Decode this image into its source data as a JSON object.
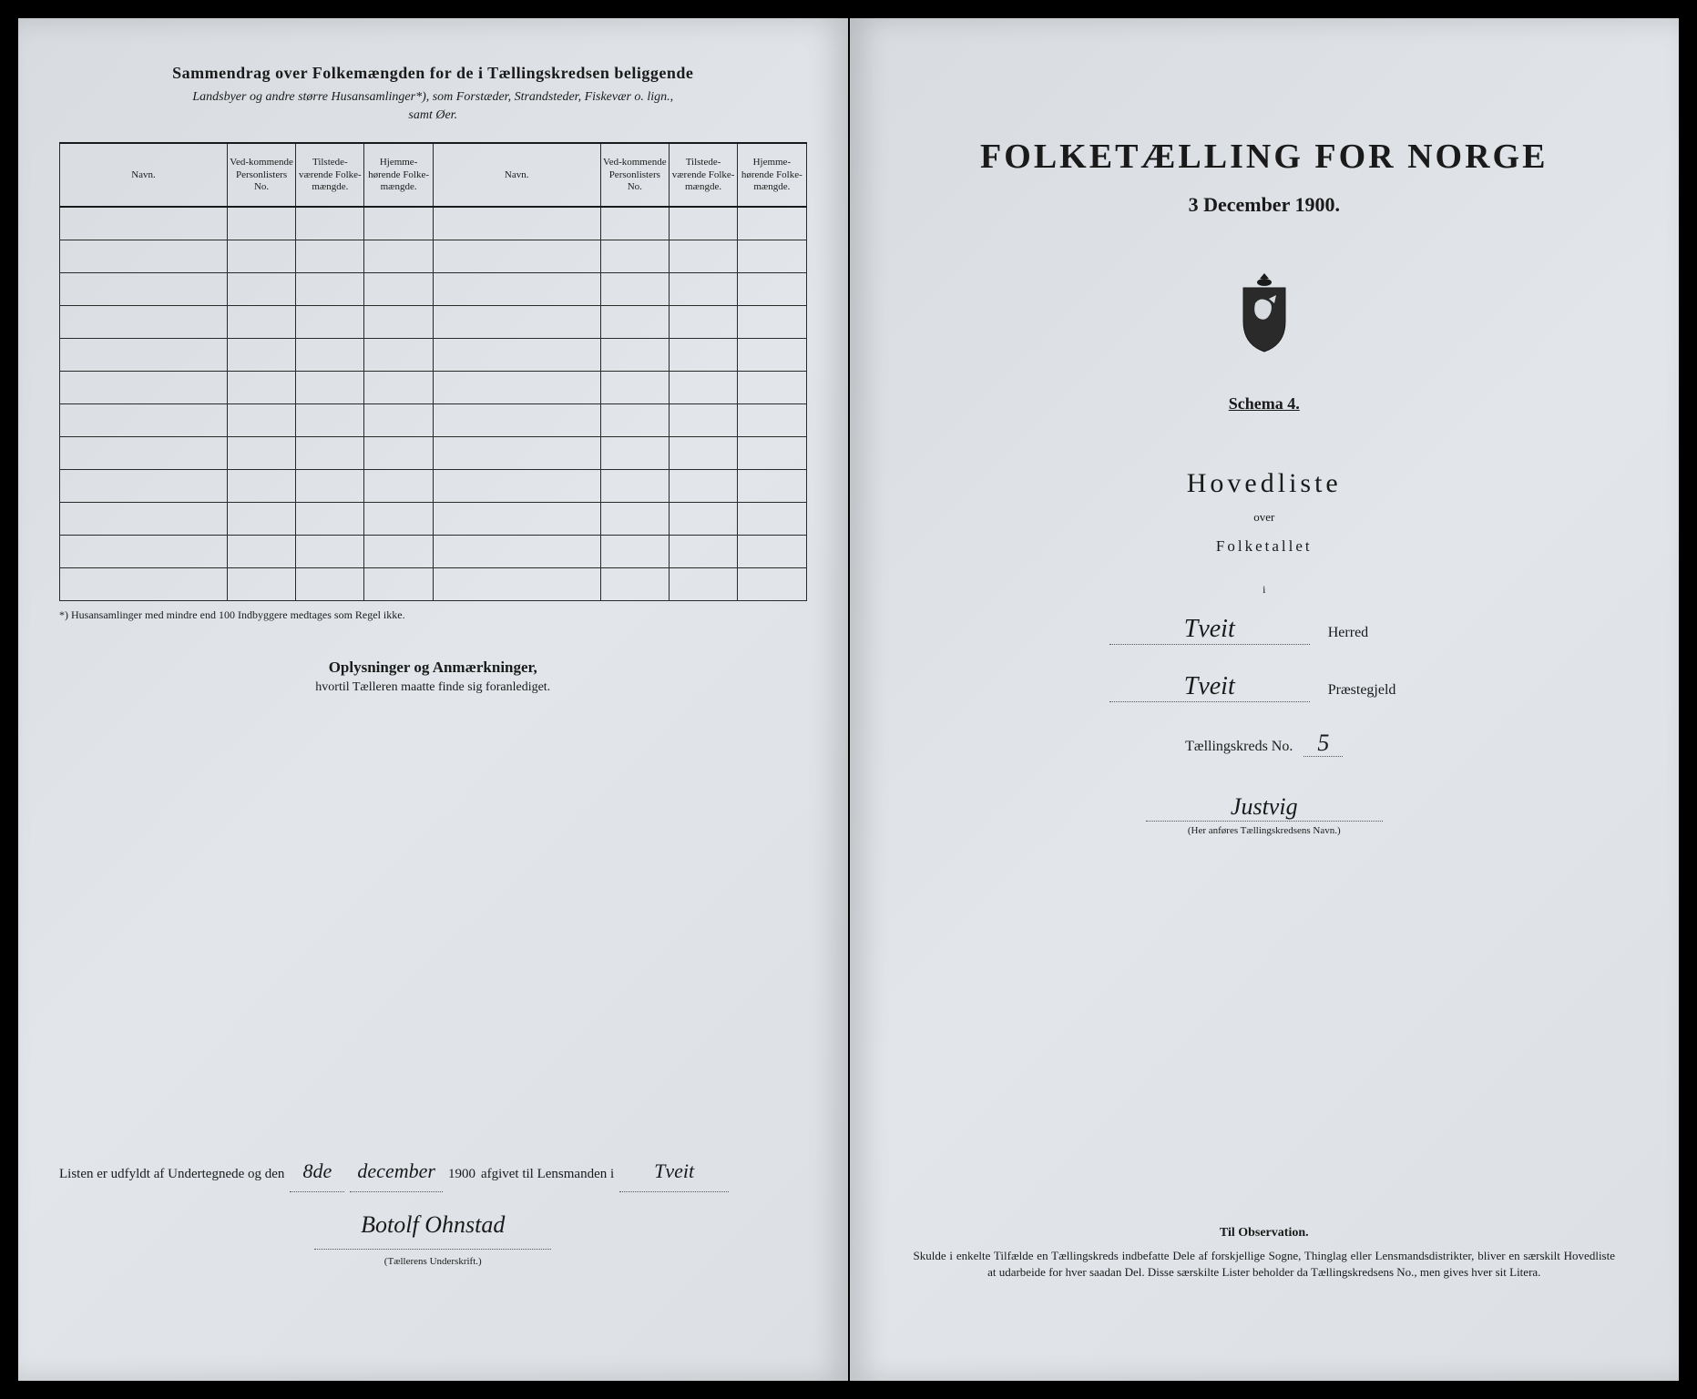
{
  "document": {
    "type": "census-form",
    "background_color": "#e0e4e8",
    "text_color": "#1a1a1a",
    "border_color": "#2a2a2a"
  },
  "left_page": {
    "header_title": "Sammendrag over Folkemængden for de i Tællingskredsen beliggende",
    "header_subtitle_1": "Landsbyer og andre større Husansamlinger*), som Forstæder, Strandsteder, Fiskevær o. lign.,",
    "header_subtitle_2": "samt Øer.",
    "table": {
      "columns": [
        "Navn.",
        "Ved-kommende Personlisters No.",
        "Tilstede-værende Folke-mængde.",
        "Hjemme-hørende Folke-mængde.",
        "Navn.",
        "Ved-kommende Personlisters No.",
        "Tilstede-værende Folke-mængde.",
        "Hjemme-hørende Folke-mængde."
      ],
      "empty_rows": 12
    },
    "footnote": "*) Husansamlinger med mindre end 100 Indbyggere medtages som Regel ikke.",
    "oplysninger_title": "Oplysninger og Anmærkninger,",
    "oplysninger_sub": "hvortil Tælleren maatte finde sig foranlediget.",
    "signature": {
      "prefix": "Listen er udfyldt af Undertegnede og den",
      "date_day": "8de",
      "date_month": "december",
      "year": "1900",
      "mid": "afgivet til Lensmanden i",
      "place": "Tveit",
      "name": "Botolf Ohnstad",
      "caption": "(Tællerens Underskrift.)"
    }
  },
  "right_page": {
    "main_title": "FOLKETÆLLING FOR NORGE",
    "main_date": "3 December 1900.",
    "schema": "Schema 4.",
    "hovedliste": "Hovedliste",
    "over": "over",
    "folketallet": "Folketallet",
    "i": "i",
    "herred_value": "Tveit",
    "herred_label": "Herred",
    "praestegjeld_value": "Tveit",
    "praestegjeld_label": "Præstegjeld",
    "kreds_label": "Tællingskreds No.",
    "kreds_no": "5",
    "kreds_name": "Justvig",
    "kreds_caption": "(Her anføres Tællingskredsens Navn.)",
    "observation_title": "Til Observation.",
    "observation_text": "Skulde i enkelte Tilfælde en Tællingskreds indbefatte Dele af forskjellige Sogne, Thinglag eller Lensmandsdistrikter, bliver en særskilt Hovedliste at udarbeide for hver saadan Del. Disse særskilte Lister beholder da Tællingskredsens No., men gives hver sit Litera."
  }
}
